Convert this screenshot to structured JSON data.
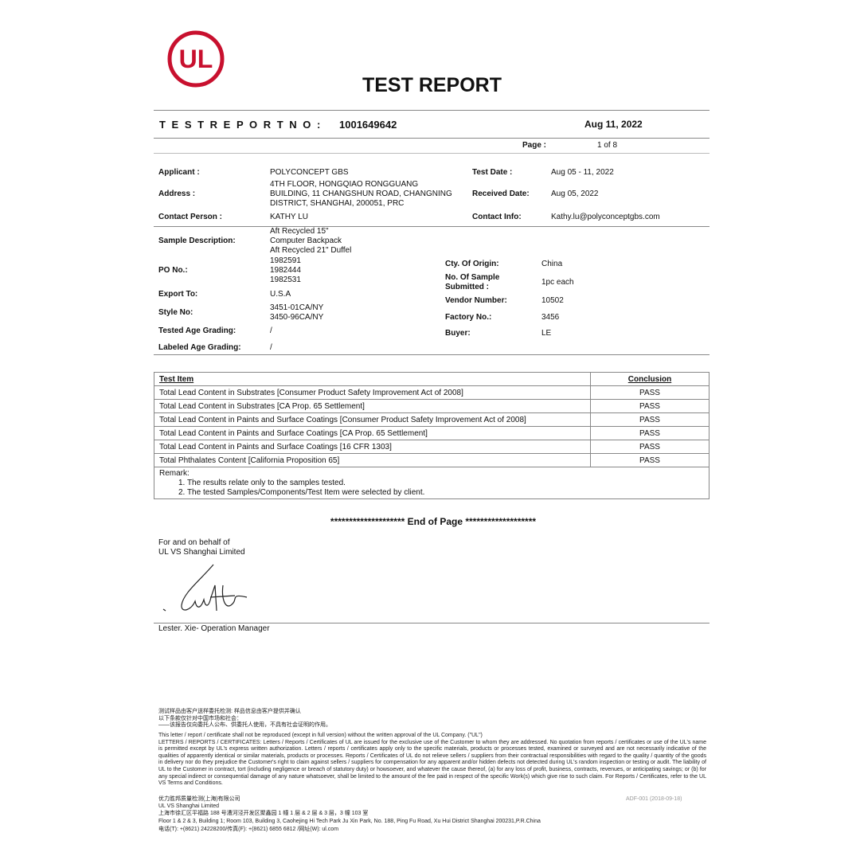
{
  "logo": {
    "text": "UL",
    "color": "#c8102e"
  },
  "title": "TEST  REPORT",
  "report_no_label": "T E S T   R E P O R T   N O :",
  "report_no": "1001649642",
  "report_date": "Aug 11, 2022",
  "page_label": "Page :",
  "page_value": "1 of 8",
  "fields": {
    "applicant_label": "Applicant :",
    "applicant": "POLYCONCEPT GBS",
    "address_label": "Address :",
    "address": "4TH FLOOR, HONGQIAO RONGGUANG\nBUILDING, 11 CHANGSHUN ROAD, CHANGNING\nDISTRICT, SHANGHAI, 200051, PRC",
    "contact_label": "Contact Person :",
    "contact": "KATHY LU",
    "test_date_label": "Test Date :",
    "test_date": "Aug 05 - 11, 2022",
    "received_label": "Received Date:",
    "received": "Aug 05, 2022",
    "contact_info_label": "Contact Info:",
    "contact_info": "Kathy.lu@polyconceptgbs.com",
    "sample_label": "Sample Description:",
    "sample": "Aft Recycled 15\"\nComputer Backpack\nAft Recycled 21\" Duffel",
    "po_label": "PO No.:",
    "po": "1982591\n1982444\n1982531",
    "export_label": "Export To:",
    "export": "U.S.A",
    "style_label": "Style No:",
    "style": "3451-01CA/NY\n3450-96CA/NY",
    "tested_age_label": "Tested Age Grading:",
    "tested_age": "/",
    "labeled_age_label": "Labeled Age Grading:",
    "labeled_age": "/",
    "origin_label": "Cty. Of Origin:",
    "origin": "China",
    "num_sample_label": "No. Of Sample\nSubmitted :",
    "num_sample": "1pc each",
    "vendor_label": "Vendor Number:",
    "vendor": "10502",
    "factory_label": "Factory No.:",
    "factory": "3456",
    "buyer_label": "Buyer:",
    "buyer": "LE"
  },
  "table": {
    "headers": [
      "Test Item",
      "Conclusion"
    ],
    "rows": [
      [
        "Total Lead Content in Substrates  [Consumer Product Safety Improvement Act of 2008]",
        "PASS"
      ],
      [
        "Total Lead Content in Substrates [CA Prop. 65 Settlement]",
        "PASS"
      ],
      [
        "Total Lead Content in Paints and Surface Coatings [Consumer Product Safety Improvement Act of 2008]",
        "PASS"
      ],
      [
        "Total Lead Content in Paints and Surface Coatings [CA Prop. 65 Settlement]",
        "PASS"
      ],
      [
        "Total Lead Content in Paints and Surface Coatings [16 CFR 1303]",
        "PASS"
      ],
      [
        "Total Phthalates Content [California Proposition 65]",
        "PASS"
      ]
    ],
    "remark_label": "Remark:",
    "remarks": [
      "1.     The results relate only to the samples tested.",
      "2.     The tested Samples/Components/Test Item were selected by client."
    ]
  },
  "end_of_page": "******************** End of Page *******************",
  "behalf": "For and on behalf of\nUL VS Shanghai Limited",
  "signer": "Lester. Xie- Operation Manager",
  "footer": {
    "cn1": "测试样品由客户送样委托检测: 样品信息由客户提供并确认\n以下条款仅针对中国市场和社会：\n——该报告仅向委托人公布、供委托人使用，不具有社会证明的作用。",
    "disclaimer": "This letter / report / certificate shall not be reproduced (except in full version) without the written approval of the UL Company. (\"UL\")\nLETTERS / REPORTS / CERTIFICATES: Letters / Reports / Certificates of UL are issued for the exclusive use of the Customer to whom they are addressed. No quotation from reports / certificates or use of the UL's name is permitted except by UL's express written authorization. Letters / reports / certificates apply only to the specific materials, products or processes tested, examined or surveyed and are not necessarily indicative of the qualities of apparently identical or similar materials, products or processes. Reports / Certificates of UL do not relieve sellers / suppliers from their contractual responsibilities with regard to the quality / quantity of the goods in delivery nor do they prejudice the Customer's right to claim against sellers / suppliers for compensation for any apparent and/or hidden defects not detected during UL's random inspection or testing or audit. The liability of UL to the Customer in contract, tort (including negligence or breach of statutory duty) or howsoever, and whatever the cause thereof, (a) for any loss of profit, business, contracts, revenues, or anticipating savings; or (b) for any special indirect or consequential damage of any nature whatsoever, shall be limited to the amount of the fee paid in respect of the specific Work(s) which give rise to such claim. For Reports / Certificates, refer to the UL VS Terms and Conditions.",
    "company_cn": "优力胜邦质量检测(上海)有限公司",
    "company": "UL VS Shanghai Limited",
    "address_cn": "上海市徐汇区平福路 188 号漕河泾开发区聚鑫园 1 幢 1 层 & 2 层 & 3 层，3 幢 103 室",
    "address_en": "Floor 1 & 2 & 3, Building 1; Room 103, Building 3, Caohejing Hi Tech Park Ju Xin Park, No. 188, Ping Fu Road, Xu Hui District Shanghai 200231,P.R.China",
    "phone": "电话(T): +(8621) 24228200/传真(F): +(8621) 6855 6812 /网址(W): ul.com",
    "form_code": "ADF-001 (2018-09-18)"
  }
}
